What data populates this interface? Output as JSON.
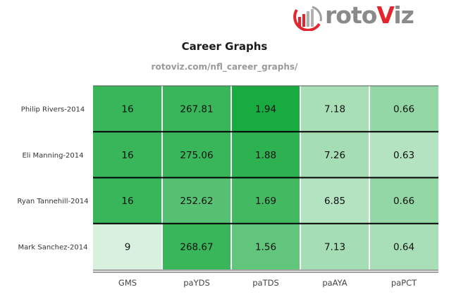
{
  "brand": {
    "name_prefix": "roto",
    "name_v": "V",
    "name_suffix": "iz"
  },
  "header": {
    "title": "Career Graphs",
    "subtitle": "rotoviz.com/nfl_career_graphs/"
  },
  "colors": {
    "brand_red": "#e3262d",
    "brand_gray": "#8a8a8a",
    "scale_light": "#e6f5ea",
    "scale_dark": "#1aab40"
  },
  "chart_data": {
    "type": "heatmap",
    "rows": [
      "Philip Rivers-2014",
      "Eli Manning-2014",
      "Ryan Tannehill-2014",
      "Mark Sanchez-2014"
    ],
    "columns": [
      "GMS",
      "paYDS",
      "paTDS",
      "paAYA",
      "paPCT"
    ],
    "cells": [
      [
        "16",
        "267.81",
        "1.94",
        "7.18",
        "0.66"
      ],
      [
        "16",
        "275.06",
        "1.88",
        "7.26",
        "0.63"
      ],
      [
        "16",
        "252.62",
        "1.69",
        "6.85",
        "0.66"
      ],
      [
        "9",
        "268.67",
        "1.56",
        "7.13",
        "0.64"
      ]
    ],
    "intensity": [
      [
        0.85,
        0.85,
        1.0,
        0.3,
        0.4
      ],
      [
        0.85,
        0.85,
        0.9,
        0.32,
        0.25
      ],
      [
        0.85,
        0.7,
        0.8,
        0.25,
        0.4
      ],
      [
        0.07,
        0.85,
        0.65,
        0.32,
        0.3
      ]
    ],
    "grid": false,
    "legend": "none"
  }
}
